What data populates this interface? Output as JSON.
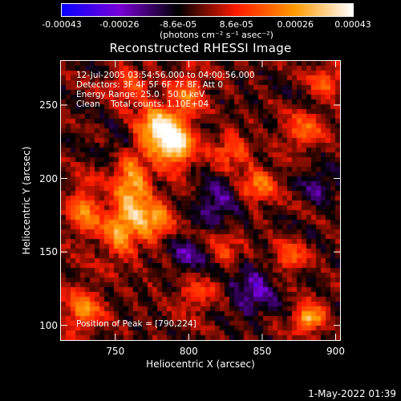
{
  "colorbar": {
    "ticks": [
      "-0.00043",
      "-0.00026",
      "-8.6e-05",
      "8.6e-05",
      "0.00026",
      "0.00043"
    ],
    "tick_values": [
      -0.00043,
      -0.00026,
      -8.6e-05,
      8.6e-05,
      0.00026,
      0.00043
    ],
    "range": [
      -0.00043,
      0.00043
    ],
    "unit": "(photons cm⁻² s⁻¹ asec⁻²)",
    "colors": [
      "#0a00ff",
      "#7a00d8",
      "#000000",
      "#ff1a00",
      "#ff9a00",
      "#ffffff"
    ]
  },
  "chart_data": {
    "type": "heatmap",
    "title": "Reconstructed RHESSI Image",
    "xlabel": "Heliocentric X (arcsec)",
    "ylabel": "Heliocentric Y (arcsec)",
    "xlim": [
      713,
      903
    ],
    "ylim": [
      90,
      280
    ],
    "xticks": [
      "750",
      "800",
      "850",
      "900"
    ],
    "xtick_values": [
      750,
      800,
      850,
      900
    ],
    "yticks": [
      "100",
      "150",
      "200",
      "250"
    ],
    "ytick_values": [
      100,
      150,
      200,
      250
    ],
    "annotations": [
      "12-Jul-2005 03:54:56.000 to 04:00:56.000",
      "Detectors: 3F 4F 5F 6F 7F 8F, Att 0",
      "Energy Range: 25.0 - 50.0 keV",
      "Clean    Total counts: 1.10E+04"
    ],
    "peak_label": "Position of Peak = [790,224]",
    "peak": [
      790,
      224
    ],
    "sources": [
      {
        "x": 790,
        "y": 224,
        "amp": 1.0,
        "sx": 9,
        "sy": 12
      },
      {
        "x": 778,
        "y": 235,
        "amp": 0.8,
        "sx": 10,
        "sy": 10
      },
      {
        "x": 761,
        "y": 193,
        "amp": 0.75,
        "sx": 8,
        "sy": 20
      },
      {
        "x": 776,
        "y": 172,
        "amp": 0.7,
        "sx": 9,
        "sy": 9
      },
      {
        "x": 752,
        "y": 162,
        "amp": 0.55,
        "sx": 7,
        "sy": 12
      },
      {
        "x": 730,
        "y": 178,
        "amp": 0.55,
        "sx": 8,
        "sy": 14
      },
      {
        "x": 800,
        "y": 260,
        "amp": 0.5,
        "sx": 8,
        "sy": 10
      },
      {
        "x": 760,
        "y": 263,
        "amp": 0.4,
        "sx": 10,
        "sy": 8
      },
      {
        "x": 847,
        "y": 195,
        "amp": 0.55,
        "sx": 10,
        "sy": 8
      },
      {
        "x": 828,
        "y": 218,
        "amp": 0.45,
        "sx": 9,
        "sy": 8
      },
      {
        "x": 882,
        "y": 105,
        "amp": 0.9,
        "sx": 7,
        "sy": 6
      },
      {
        "x": 878,
        "y": 232,
        "amp": 0.5,
        "sx": 10,
        "sy": 8
      },
      {
        "x": 893,
        "y": 266,
        "amp": 0.45,
        "sx": 7,
        "sy": 8
      },
      {
        "x": 868,
        "y": 145,
        "amp": 0.45,
        "sx": 8,
        "sy": 8
      },
      {
        "x": 805,
        "y": 120,
        "amp": 0.4,
        "sx": 10,
        "sy": 7
      },
      {
        "x": 728,
        "y": 110,
        "amp": 0.55,
        "sx": 9,
        "sy": 12
      },
      {
        "x": 825,
        "y": 153,
        "amp": 0.35,
        "sx": 8,
        "sy": 8
      },
      {
        "x": 820,
        "y": 185,
        "amp": -0.4,
        "sx": 10,
        "sy": 10
      },
      {
        "x": 845,
        "y": 125,
        "amp": -0.45,
        "sx": 11,
        "sy": 11
      },
      {
        "x": 800,
        "y": 148,
        "amp": -0.35,
        "sx": 9,
        "sy": 9
      },
      {
        "x": 755,
        "y": 225,
        "amp": -0.3,
        "sx": 8,
        "sy": 8
      },
      {
        "x": 890,
        "y": 195,
        "amp": -0.3,
        "sx": 9,
        "sy": 9
      }
    ]
  },
  "footer": {
    "date": "1-May-2022 01:39"
  }
}
